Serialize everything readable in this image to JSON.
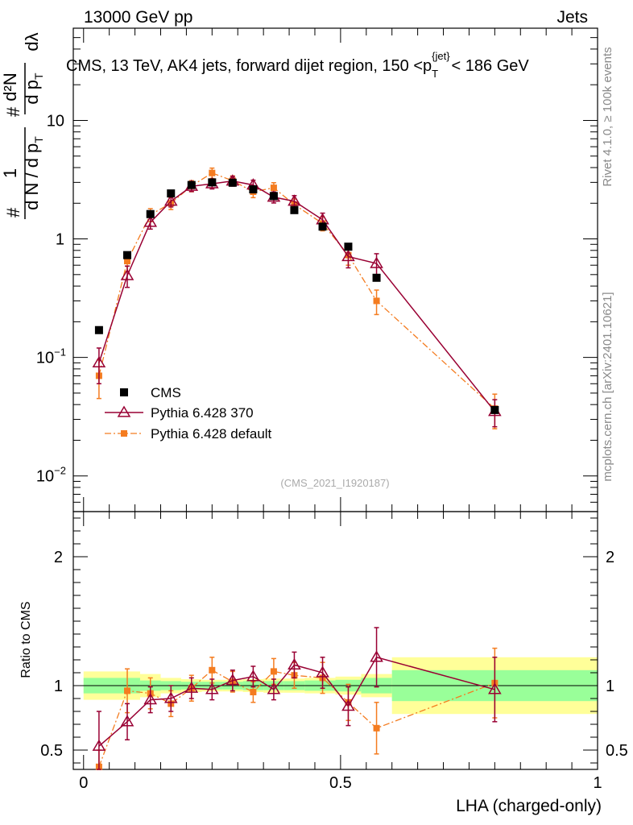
{
  "header": {
    "left": "13000 GeV pp",
    "right": "Jets"
  },
  "side_labels": {
    "rivet": "Rivet 4.1.0, ≥ 100k events",
    "mcplots": "mcplots.cern.ch [arXiv:2401.10621]"
  },
  "colors": {
    "data": "#000000",
    "mc1": "#990033",
    "mc2": "#f47c20",
    "band_inner": "#99ff99",
    "band_outer": "#ffff99"
  },
  "chart_data": [
    {
      "type": "scatter",
      "panel": "main",
      "title_parts": {
        "prefix": "CMS, 13 TeV, AK4 jets, forward dijet region, 150 <p",
        "sub": "T",
        "sup": "{jet}",
        "suffix": "< 186 GeV"
      },
      "ylabel": "1/dN/dpT · d²N/dpT dλ",
      "ylabel_parts": {
        "a": "#",
        "b": "d N / d p",
        "c": "T",
        "d": "1",
        "e": "d p",
        "f": "T",
        "g": "dλ",
        "h": "#",
        "i": "d²N"
      },
      "ylim": [
        0.005,
        60
      ],
      "yscale": "log",
      "xlim": [
        -0.02,
        1.0
      ],
      "yticks": [
        {
          "v": 0.01,
          "base": "10",
          "exp": "−2"
        },
        {
          "v": 0.1,
          "base": "10",
          "exp": "−1"
        },
        {
          "v": 1,
          "base": "1",
          "exp": ""
        },
        {
          "v": 10,
          "base": "10",
          "exp": ""
        }
      ],
      "watermark": "(CMS_2021_I1920187)",
      "legend": [
        {
          "key": "data",
          "label": "CMS"
        },
        {
          "key": "mc1",
          "label": "Pythia 6.428 370"
        },
        {
          "key": "mc2",
          "label": "Pythia 6.428 default"
        }
      ],
      "series": [
        {
          "key": "data",
          "name": "CMS",
          "x": [
            0.03,
            0.085,
            0.13,
            0.17,
            0.21,
            0.25,
            0.29,
            0.33,
            0.37,
            0.41,
            0.465,
            0.515,
            0.57,
            0.8
          ],
          "y": [
            0.17,
            0.73,
            1.62,
            2.42,
            2.85,
            3.0,
            2.98,
            2.62,
            2.3,
            1.75,
            1.27,
            0.86,
            0.47,
            0.036
          ]
        },
        {
          "key": "mc1",
          "name": "Pythia 6.428 370",
          "x": [
            0.03,
            0.085,
            0.13,
            0.17,
            0.21,
            0.25,
            0.29,
            0.33,
            0.37,
            0.41,
            0.465,
            0.515,
            0.57,
            0.8
          ],
          "y": [
            0.09,
            0.49,
            1.38,
            2.08,
            2.78,
            2.92,
            3.08,
            2.85,
            2.25,
            2.08,
            1.45,
            0.71,
            0.62,
            0.035
          ],
          "err": [
            0.03,
            0.1,
            0.17,
            0.22,
            0.27,
            0.28,
            0.29,
            0.28,
            0.24,
            0.24,
            0.2,
            0.14,
            0.13,
            0.009
          ]
        },
        {
          "key": "mc2",
          "name": "Pythia 6.428 default",
          "x": [
            0.03,
            0.085,
            0.13,
            0.17,
            0.21,
            0.25,
            0.29,
            0.33,
            0.37,
            0.41,
            0.465,
            0.515,
            0.57,
            0.8
          ],
          "y": [
            0.07,
            0.65,
            1.6,
            2.0,
            2.8,
            3.6,
            3.1,
            2.5,
            2.7,
            1.95,
            1.35,
            0.73,
            0.3,
            0.037
          ],
          "err": [
            0.025,
            0.12,
            0.2,
            0.23,
            0.3,
            0.36,
            0.3,
            0.27,
            0.28,
            0.22,
            0.18,
            0.13,
            0.07,
            0.012
          ]
        }
      ]
    },
    {
      "type": "scatter",
      "panel": "ratio",
      "ylabel": "Ratio to CMS",
      "xlabel": "LHA (charged-only)",
      "ylim": [
        0.35,
        2.35
      ],
      "xlim": [
        -0.02,
        1.0
      ],
      "yticks": [
        {
          "v": 0.5,
          "label": "0.5"
        },
        {
          "v": 1,
          "label": "1"
        },
        {
          "v": 2,
          "label": "2"
        }
      ],
      "xticks": [
        {
          "v": 0,
          "label": "0"
        },
        {
          "v": 0.5,
          "label": "0.5"
        },
        {
          "v": 1,
          "label": "1"
        }
      ],
      "bands": {
        "edges": [
          0.0,
          0.11,
          0.15,
          0.19,
          0.23,
          0.27,
          0.31,
          0.35,
          0.39,
          0.43,
          0.49,
          0.54,
          0.6,
          1.0
        ],
        "inner": [
          0.06,
          0.04,
          0.035,
          0.03,
          0.03,
          0.03,
          0.035,
          0.035,
          0.035,
          0.04,
          0.045,
          0.06,
          0.12
        ],
        "outer": [
          0.11,
          0.09,
          0.06,
          0.05,
          0.045,
          0.045,
          0.05,
          0.055,
          0.055,
          0.06,
          0.07,
          0.09,
          0.22
        ]
      },
      "series": [
        {
          "key": "mc1",
          "name": "Pythia 6.428 370",
          "x": [
            0.03,
            0.085,
            0.13,
            0.17,
            0.21,
            0.25,
            0.29,
            0.33,
            0.37,
            0.41,
            0.465,
            0.515,
            0.57,
            0.8
          ],
          "y": [
            0.53,
            0.72,
            0.89,
            0.9,
            0.98,
            0.97,
            1.04,
            1.07,
            0.97,
            1.16,
            1.1,
            0.84,
            1.22,
            0.97
          ],
          "err": [
            0.27,
            0.14,
            0.1,
            0.1,
            0.08,
            0.08,
            0.08,
            0.08,
            0.08,
            0.1,
            0.12,
            0.15,
            0.23,
            0.25
          ]
        },
        {
          "key": "mc2",
          "name": "Pythia 6.428 default",
          "x": [
            0.03,
            0.085,
            0.13,
            0.17,
            0.21,
            0.25,
            0.29,
            0.33,
            0.37,
            0.41,
            0.465,
            0.515,
            0.57,
            0.8
          ],
          "y": [
            0.37,
            0.96,
            0.94,
            0.86,
            0.98,
            1.12,
            1.03,
            0.95,
            1.11,
            1.08,
            1.06,
            0.87,
            0.67,
            1.02
          ],
          "err": [
            0.13,
            0.17,
            0.12,
            0.1,
            0.1,
            0.1,
            0.08,
            0.08,
            0.1,
            0.1,
            0.12,
            0.14,
            0.2,
            0.27
          ]
        }
      ]
    }
  ]
}
